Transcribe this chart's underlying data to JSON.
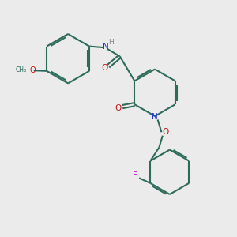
{
  "bg_color": "#ebebeb",
  "bond_color": "#2d6b5a",
  "N_color": "#1a3acc",
  "O_color": "#cc1111",
  "F_color": "#cc00cc",
  "H_color": "#888888",
  "line_width": 1.5,
  "fig_size": [
    3.0,
    3.0
  ],
  "dpi": 100,
  "xlim": [
    0,
    10
  ],
  "ylim": [
    0,
    10
  ]
}
